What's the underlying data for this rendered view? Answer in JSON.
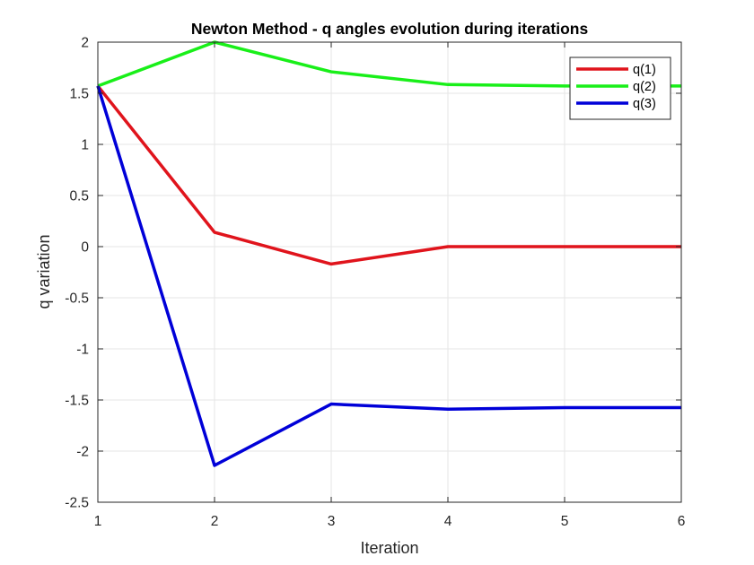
{
  "chart_data": {
    "type": "line",
    "title": "Newton Method - q angles evolution during iterations",
    "xlabel": "Iteration",
    "ylabel": "q variation",
    "xlim": [
      1,
      6
    ],
    "ylim": [
      -2.5,
      2
    ],
    "x": [
      1,
      2,
      3,
      4,
      5,
      6
    ],
    "xticks": [
      "1",
      "2",
      "3",
      "4",
      "5",
      "6"
    ],
    "yticks": [
      "2",
      "1.5",
      "1",
      "0.5",
      "0",
      "-0.5",
      "-1",
      "-1.5",
      "-2",
      "-2.5"
    ],
    "grid": true,
    "legend_position": "top-right",
    "series": [
      {
        "name": "q(1)",
        "color": "#e0141c",
        "values": [
          1.571,
          0.14,
          -0.17,
          0.0,
          0.0,
          0.0
        ]
      },
      {
        "name": "q(2)",
        "color": "#19ef19",
        "values": [
          1.571,
          2.0,
          1.71,
          1.585,
          1.571,
          1.571
        ]
      },
      {
        "name": "q(3)",
        "color": "#0000d8",
        "values": [
          1.571,
          -2.14,
          -1.54,
          -1.59,
          -1.575,
          -1.575
        ]
      }
    ]
  }
}
